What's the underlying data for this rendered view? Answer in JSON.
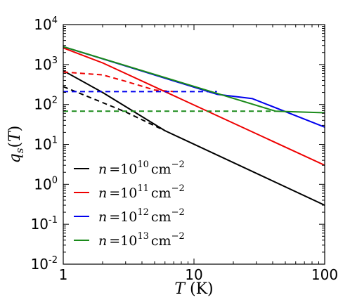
{
  "chart_data": {
    "type": "line",
    "x_scale": "log",
    "y_scale": "log",
    "xlim": [
      1,
      100
    ],
    "ylim": [
      0.01,
      10000
    ],
    "xlabel": {
      "var": "T",
      "unit": "(K)"
    },
    "ylabel": {
      "var": "q",
      "sub": "s",
      "arg": "T"
    },
    "x_ticks": [
      {
        "value": 1,
        "label": "1"
      },
      {
        "value": 10,
        "label": "10"
      },
      {
        "value": 100,
        "label": "100"
      }
    ],
    "y_ticks": [
      {
        "value": 0.01,
        "base": "10",
        "exp": "-2"
      },
      {
        "value": 0.1,
        "base": "10",
        "exp": "-1"
      },
      {
        "value": 1,
        "base": "10",
        "exp": "0"
      },
      {
        "value": 10,
        "base": "10",
        "exp": "1"
      },
      {
        "value": 100,
        "base": "10",
        "exp": "2"
      },
      {
        "value": 1000,
        "base": "10",
        "exp": "3"
      },
      {
        "value": 10000,
        "base": "10",
        "exp": "4"
      }
    ],
    "legend_position": "lower-left",
    "series": [
      {
        "name": "n = 10^10 cm^-2",
        "legend": {
          "var": "n",
          "eq": "=",
          "base": "10",
          "exp": "10",
          "unit": "cm",
          "unit_exp": "−2"
        },
        "color": "#000000",
        "solid": {
          "x": [
            1,
            2,
            6,
            100
          ],
          "y": [
            700,
            200,
            22,
            0.3
          ]
        },
        "dashed": {
          "x": [
            1,
            3,
            6
          ],
          "y": [
            280,
            65,
            22
          ]
        }
      },
      {
        "name": "n = 10^11 cm^-2",
        "legend": {
          "var": "n",
          "eq": "=",
          "base": "10",
          "exp": "11",
          "unit": "cm",
          "unit_exp": "−2"
        },
        "color": "#ee0000",
        "solid": {
          "x": [
            1,
            2,
            100
          ],
          "y": [
            2600,
            1100,
            3
          ]
        },
        "dashed": {
          "x": [
            1,
            2,
            3,
            5,
            7
          ],
          "y": [
            650,
            550,
            380,
            230,
            210
          ]
        }
      },
      {
        "name": "n = 10^12 cm^-2",
        "legend": {
          "var": "n",
          "eq": "=",
          "base": "10",
          "exp": "12",
          "unit": "cm",
          "unit_exp": "−2"
        },
        "color": "#0000ee",
        "solid": {
          "x": [
            1,
            15,
            28,
            100
          ],
          "y": [
            2800,
            180,
            140,
            27
          ]
        },
        "dashed": {
          "x": [
            1,
            15
          ],
          "y": [
            210,
            210
          ]
        }
      },
      {
        "name": "n = 10^13 cm^-2",
        "legend": {
          "var": "n",
          "eq": "=",
          "base": "10",
          "exp": "13",
          "unit": "cm",
          "unit_exp": "−2"
        },
        "color": "#1a8a1a",
        "solid": {
          "x": [
            1,
            42,
            100
          ],
          "y": [
            2800,
            68,
            62
          ]
        },
        "dashed": {
          "x": [
            1,
            42
          ],
          "y": [
            68,
            68
          ]
        }
      }
    ]
  }
}
